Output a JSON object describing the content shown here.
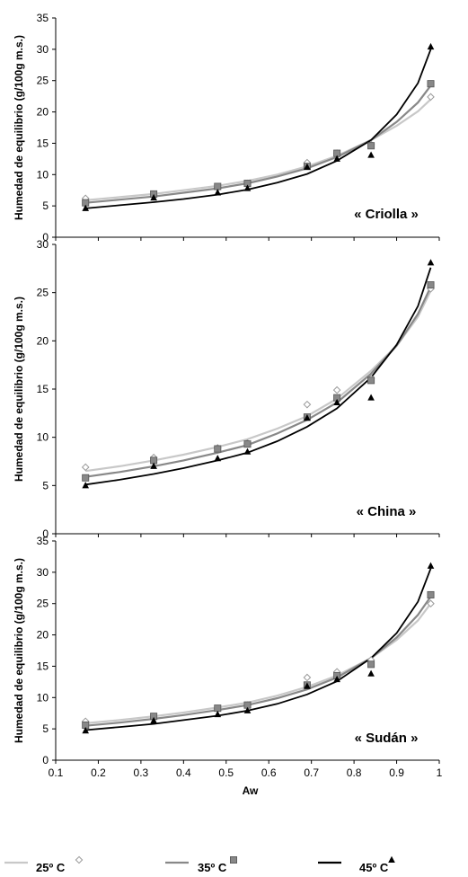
{
  "chart_data": [
    {
      "type": "scatter",
      "panel_label": "« Criolla »",
      "ylabel": "Humedad de equilibrio (g/100g m.s.)",
      "xlabel": "",
      "xlim": [
        0.1,
        1
      ],
      "ylim": [
        0,
        35
      ],
      "yticks": [
        "0",
        "5",
        "10",
        "15",
        "20",
        "25",
        "30",
        "35"
      ],
      "xticks": [],
      "series": [
        {
          "name": "25º C",
          "marker": "diamond",
          "color": "#c8c8c8",
          "points": [
            [
              0.17,
              6.2
            ],
            [
              0.33,
              6.8
            ],
            [
              0.48,
              7.9
            ],
            [
              0.55,
              8.6
            ],
            [
              0.69,
              11.9
            ],
            [
              0.76,
              13.4
            ],
            [
              0.84,
              14.8
            ],
            [
              0.98,
              22.4
            ]
          ],
          "curve": [
            [
              0.17,
              5.9
            ],
            [
              0.25,
              6.4
            ],
            [
              0.33,
              6.9
            ],
            [
              0.4,
              7.5
            ],
            [
              0.48,
              8.2
            ],
            [
              0.55,
              9.0
            ],
            [
              0.62,
              10.0
            ],
            [
              0.69,
              11.3
            ],
            [
              0.76,
              13.0
            ],
            [
              0.84,
              15.5
            ],
            [
              0.9,
              17.8
            ],
            [
              0.95,
              20.1
            ],
            [
              0.98,
              22.0
            ]
          ]
        },
        {
          "name": "35º C",
          "marker": "square",
          "color": "#888888",
          "points": [
            [
              0.17,
              5.5
            ],
            [
              0.33,
              6.9
            ],
            [
              0.48,
              8.1
            ],
            [
              0.55,
              8.6
            ],
            [
              0.69,
              11.3
            ],
            [
              0.76,
              13.4
            ],
            [
              0.84,
              14.6
            ],
            [
              0.98,
              24.5
            ]
          ],
          "curve": [
            [
              0.17,
              5.5
            ],
            [
              0.25,
              6.0
            ],
            [
              0.33,
              6.5
            ],
            [
              0.4,
              7.1
            ],
            [
              0.48,
              7.8
            ],
            [
              0.55,
              8.6
            ],
            [
              0.62,
              9.7
            ],
            [
              0.69,
              11.0
            ],
            [
              0.76,
              12.8
            ],
            [
              0.84,
              15.5
            ],
            [
              0.9,
              18.4
            ],
            [
              0.95,
              21.5
            ],
            [
              0.98,
              24.2
            ]
          ]
        },
        {
          "name": "45º C",
          "marker": "triangle",
          "color": "#000000",
          "points": [
            [
              0.17,
              4.6
            ],
            [
              0.33,
              6.3
            ],
            [
              0.48,
              7.1
            ],
            [
              0.55,
              7.8
            ],
            [
              0.69,
              11.2
            ],
            [
              0.76,
              12.5
            ],
            [
              0.84,
              13.1
            ],
            [
              0.98,
              30.4
            ]
          ],
          "curve": [
            [
              0.17,
              4.6
            ],
            [
              0.25,
              5.1
            ],
            [
              0.33,
              5.6
            ],
            [
              0.4,
              6.1
            ],
            [
              0.48,
              6.8
            ],
            [
              0.55,
              7.6
            ],
            [
              0.62,
              8.7
            ],
            [
              0.69,
              10.1
            ],
            [
              0.76,
              12.2
            ],
            [
              0.84,
              15.5
            ],
            [
              0.9,
              19.6
            ],
            [
              0.95,
              24.6
            ],
            [
              0.98,
              30.0
            ]
          ]
        }
      ]
    },
    {
      "type": "scatter",
      "panel_label": "« China »",
      "ylabel": "Humedad de equilibrio (g/100g m.s.)",
      "xlabel": "",
      "xlim": [
        0.1,
        1
      ],
      "ylim": [
        0,
        30
      ],
      "yticks": [
        "0",
        "5",
        "10",
        "15",
        "20",
        "25",
        "30"
      ],
      "xticks": [],
      "series": [
        {
          "name": "25º C",
          "marker": "diamond",
          "color": "#c8c8c8",
          "points": [
            [
              0.17,
              6.9
            ],
            [
              0.33,
              7.9
            ],
            [
              0.48,
              8.9
            ],
            [
              0.55,
              9.4
            ],
            [
              0.69,
              13.4
            ],
            [
              0.76,
              14.9
            ],
            [
              0.84,
              16.1
            ],
            [
              0.98,
              25.4
            ]
          ],
          "curve": [
            [
              0.17,
              6.5
            ],
            [
              0.25,
              7.0
            ],
            [
              0.33,
              7.6
            ],
            [
              0.4,
              8.2
            ],
            [
              0.48,
              9.0
            ],
            [
              0.55,
              9.8
            ],
            [
              0.62,
              10.9
            ],
            [
              0.69,
              12.2
            ],
            [
              0.76,
              14.0
            ],
            [
              0.84,
              16.9
            ],
            [
              0.9,
              19.5
            ],
            [
              0.95,
              22.5
            ],
            [
              0.98,
              25.2
            ]
          ]
        },
        {
          "name": "35º C",
          "marker": "square",
          "color": "#888888",
          "points": [
            [
              0.17,
              5.8
            ],
            [
              0.33,
              7.6
            ],
            [
              0.48,
              8.8
            ],
            [
              0.55,
              9.3
            ],
            [
              0.69,
              12.1
            ],
            [
              0.76,
              14.1
            ],
            [
              0.84,
              15.9
            ],
            [
              0.98,
              25.8
            ]
          ],
          "curve": [
            [
              0.17,
              5.9
            ],
            [
              0.25,
              6.4
            ],
            [
              0.33,
              7.0
            ],
            [
              0.4,
              7.6
            ],
            [
              0.48,
              8.4
            ],
            [
              0.55,
              9.2
            ],
            [
              0.62,
              10.4
            ],
            [
              0.69,
              11.8
            ],
            [
              0.76,
              13.6
            ],
            [
              0.84,
              16.6
            ],
            [
              0.9,
              19.5
            ],
            [
              0.95,
              22.8
            ],
            [
              0.98,
              25.6
            ]
          ]
        },
        {
          "name": "45º C",
          "marker": "triangle",
          "color": "#000000",
          "points": [
            [
              0.17,
              5.0
            ],
            [
              0.33,
              7.0
            ],
            [
              0.48,
              7.8
            ],
            [
              0.55,
              8.5
            ],
            [
              0.69,
              12.0
            ],
            [
              0.76,
              13.6
            ],
            [
              0.84,
              14.1
            ],
            [
              0.98,
              28.1
            ]
          ],
          "curve": [
            [
              0.17,
              5.1
            ],
            [
              0.25,
              5.6
            ],
            [
              0.33,
              6.2
            ],
            [
              0.4,
              6.8
            ],
            [
              0.48,
              7.6
            ],
            [
              0.55,
              8.4
            ],
            [
              0.62,
              9.6
            ],
            [
              0.69,
              11.1
            ],
            [
              0.76,
              13.0
            ],
            [
              0.84,
              16.2
            ],
            [
              0.9,
              19.6
            ],
            [
              0.95,
              23.6
            ],
            [
              0.98,
              27.6
            ]
          ]
        }
      ]
    },
    {
      "type": "scatter",
      "panel_label": "« Sudán »",
      "ylabel": "Humedad de equilibrio (g/100g m.s.)",
      "xlabel": "Aw",
      "xlim": [
        0.1,
        1
      ],
      "ylim": [
        0,
        35
      ],
      "yticks": [
        "0",
        "5",
        "10",
        "15",
        "20",
        "25",
        "30",
        "35"
      ],
      "xticks": [
        "0.1",
        "0.2",
        "0.3",
        "0.4",
        "0.5",
        "0.6",
        "0.7",
        "0.8",
        "0.9",
        "1"
      ],
      "series": [
        {
          "name": "25º C",
          "marker": "diamond",
          "color": "#c8c8c8",
          "points": [
            [
              0.17,
              6.2
            ],
            [
              0.33,
              6.8
            ],
            [
              0.48,
              8.2
            ],
            [
              0.55,
              8.8
            ],
            [
              0.69,
              13.2
            ],
            [
              0.76,
              14.1
            ],
            [
              0.84,
              16.0
            ],
            [
              0.98,
              25.0
            ]
          ],
          "curve": [
            [
              0.17,
              5.9
            ],
            [
              0.25,
              6.4
            ],
            [
              0.33,
              7.0
            ],
            [
              0.4,
              7.6
            ],
            [
              0.48,
              8.4
            ],
            [
              0.55,
              9.2
            ],
            [
              0.62,
              10.3
            ],
            [
              0.69,
              11.7
            ],
            [
              0.76,
              13.5
            ],
            [
              0.84,
              16.3
            ],
            [
              0.9,
              19.2
            ],
            [
              0.95,
              22.3
            ],
            [
              0.98,
              25.0
            ]
          ]
        },
        {
          "name": "35º C",
          "marker": "square",
          "color": "#888888",
          "points": [
            [
              0.17,
              5.6
            ],
            [
              0.33,
              7.0
            ],
            [
              0.48,
              8.3
            ],
            [
              0.55,
              8.8
            ],
            [
              0.69,
              12.0
            ],
            [
              0.76,
              13.5
            ],
            [
              0.84,
              15.3
            ],
            [
              0.98,
              26.4
            ]
          ],
          "curve": [
            [
              0.17,
              5.5
            ],
            [
              0.25,
              6.0
            ],
            [
              0.33,
              6.6
            ],
            [
              0.4,
              7.2
            ],
            [
              0.48,
              8.0
            ],
            [
              0.55,
              8.8
            ],
            [
              0.62,
              9.9
            ],
            [
              0.69,
              11.3
            ],
            [
              0.76,
              13.2
            ],
            [
              0.84,
              16.3
            ],
            [
              0.9,
              19.6
            ],
            [
              0.95,
              23.2
            ],
            [
              0.98,
              26.1
            ]
          ]
        },
        {
          "name": "45º C",
          "marker": "triangle",
          "color": "#000000",
          "points": [
            [
              0.17,
              4.7
            ],
            [
              0.33,
              6.3
            ],
            [
              0.48,
              7.3
            ],
            [
              0.55,
              7.9
            ],
            [
              0.69,
              11.8
            ],
            [
              0.76,
              12.9
            ],
            [
              0.84,
              13.8
            ],
            [
              0.98,
              31.0
            ]
          ],
          "curve": [
            [
              0.17,
              4.8
            ],
            [
              0.25,
              5.3
            ],
            [
              0.33,
              5.8
            ],
            [
              0.4,
              6.4
            ],
            [
              0.48,
              7.1
            ],
            [
              0.55,
              7.9
            ],
            [
              0.62,
              9.0
            ],
            [
              0.69,
              10.5
            ],
            [
              0.76,
              12.6
            ],
            [
              0.84,
              16.3
            ],
            [
              0.9,
              20.3
            ],
            [
              0.95,
              25.3
            ],
            [
              0.98,
              30.6
            ]
          ]
        }
      ]
    }
  ],
  "legend": [
    {
      "label": "25º C",
      "color": "#c8c8c8",
      "marker": "diamond"
    },
    {
      "label": "35º C",
      "color": "#888888",
      "marker": "square"
    },
    {
      "label": "45º C",
      "color": "#000000",
      "marker": "triangle"
    }
  ]
}
